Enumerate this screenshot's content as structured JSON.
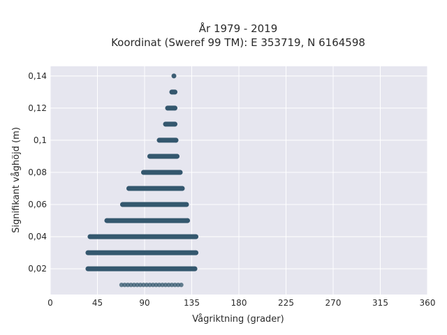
{
  "chart_data": {
    "type": "scatter",
    "title": "År 1979 - 2019",
    "subtitle": "Koordinat (Sweref 99 TM): E 353719, N 6164598",
    "xlabel": "Vågriktning (grader)",
    "ylabel": "Signifikant våghöjd (m)",
    "xlim": [
      0,
      360
    ],
    "ylim": [
      0.004,
      0.146
    ],
    "x_ticks": [
      0,
      45,
      90,
      135,
      180,
      225,
      270,
      315,
      360
    ],
    "x_tick_labels": [
      "0",
      "45",
      "90",
      "135",
      "180",
      "225",
      "270",
      "315",
      "360"
    ],
    "y_ticks": [
      0.02,
      0.04,
      0.06,
      0.08,
      0.1,
      0.12,
      0.14
    ],
    "y_tick_labels": [
      "0,02",
      "0,04",
      "0,06",
      "0,08",
      "0,1",
      "0,12",
      "0,14"
    ],
    "grid": true,
    "marker_color": "#34586e",
    "background_color": "#e6e6ef",
    "bands": [
      {
        "y": 0.01,
        "x_min": 68,
        "x_max": 125,
        "sparse": true
      },
      {
        "y": 0.02,
        "x_min": 36,
        "x_max": 138
      },
      {
        "y": 0.03,
        "x_min": 36,
        "x_max": 139
      },
      {
        "y": 0.04,
        "x_min": 38,
        "x_max": 139
      },
      {
        "y": 0.05,
        "x_min": 54,
        "x_max": 131
      },
      {
        "y": 0.06,
        "x_min": 69,
        "x_max": 130
      },
      {
        "y": 0.07,
        "x_min": 75,
        "x_max": 126
      },
      {
        "y": 0.08,
        "x_min": 89,
        "x_max": 124
      },
      {
        "y": 0.09,
        "x_min": 95,
        "x_max": 121
      },
      {
        "y": 0.1,
        "x_min": 104,
        "x_max": 120
      },
      {
        "y": 0.11,
        "x_min": 110,
        "x_max": 119
      },
      {
        "y": 0.12,
        "x_min": 112,
        "x_max": 119
      },
      {
        "y": 0.13,
        "x_min": 116,
        "x_max": 119
      },
      {
        "y": 0.14,
        "x_min": 118,
        "x_max": 118
      }
    ]
  }
}
